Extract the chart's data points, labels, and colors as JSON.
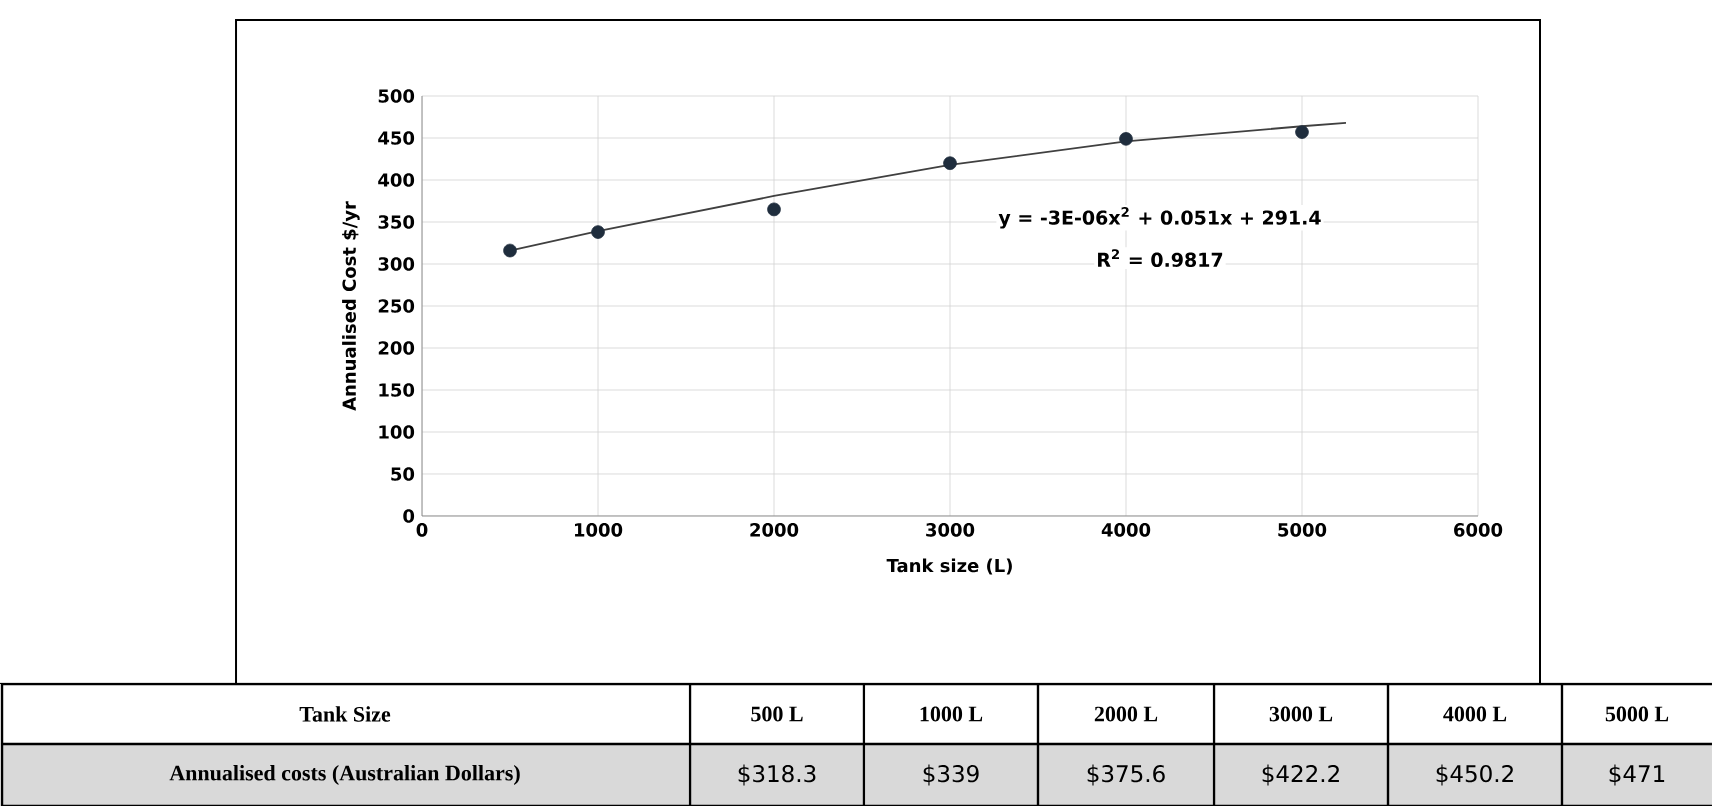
{
  "chart_data": {
    "type": "scatter",
    "xlabel": "Tank size (L)",
    "ylabel": "Annualised Cost $/yr",
    "x": [
      500,
      1000,
      2000,
      3000,
      4000,
      5000
    ],
    "series": [
      {
        "color": "#1f2d3d",
        "marker": "circle",
        "values": [
          316,
          338,
          365,
          420,
          449,
          457
        ]
      },
      {
        "type": "line",
        "color": "#404040",
        "marker": "none",
        "line_style": "solid",
        "x": [
          500,
          1000,
          2000,
          3000,
          4000,
          5000,
          5250
        ],
        "values": [
          316,
          339,
          381,
          418,
          446,
          464,
          468
        ]
      }
    ],
    "xlim": [
      0,
      6000
    ],
    "ylim": [
      0,
      500
    ],
    "xticks": [
      0,
      1000,
      2000,
      3000,
      4000,
      5000,
      6000
    ],
    "yticks": [
      0,
      50,
      100,
      150,
      200,
      250,
      300,
      350,
      400,
      450,
      500
    ],
    "grid": true,
    "annotations": [
      "Tank Size",
      "500 L",
      "1000 L",
      "2000 L",
      "3000 L",
      "4000 L",
      "5000 L",
      "Annualised costs (Australian Dollars)",
      "y = -3E-06x$^{2}$ + 0.051x + 291.4",
      "R$^{2}$ = 0.9817",
      "$318.3",
      "$339",
      "$375.6",
      "$422.2",
      "$450.2",
      "$471"
    ]
  }
}
